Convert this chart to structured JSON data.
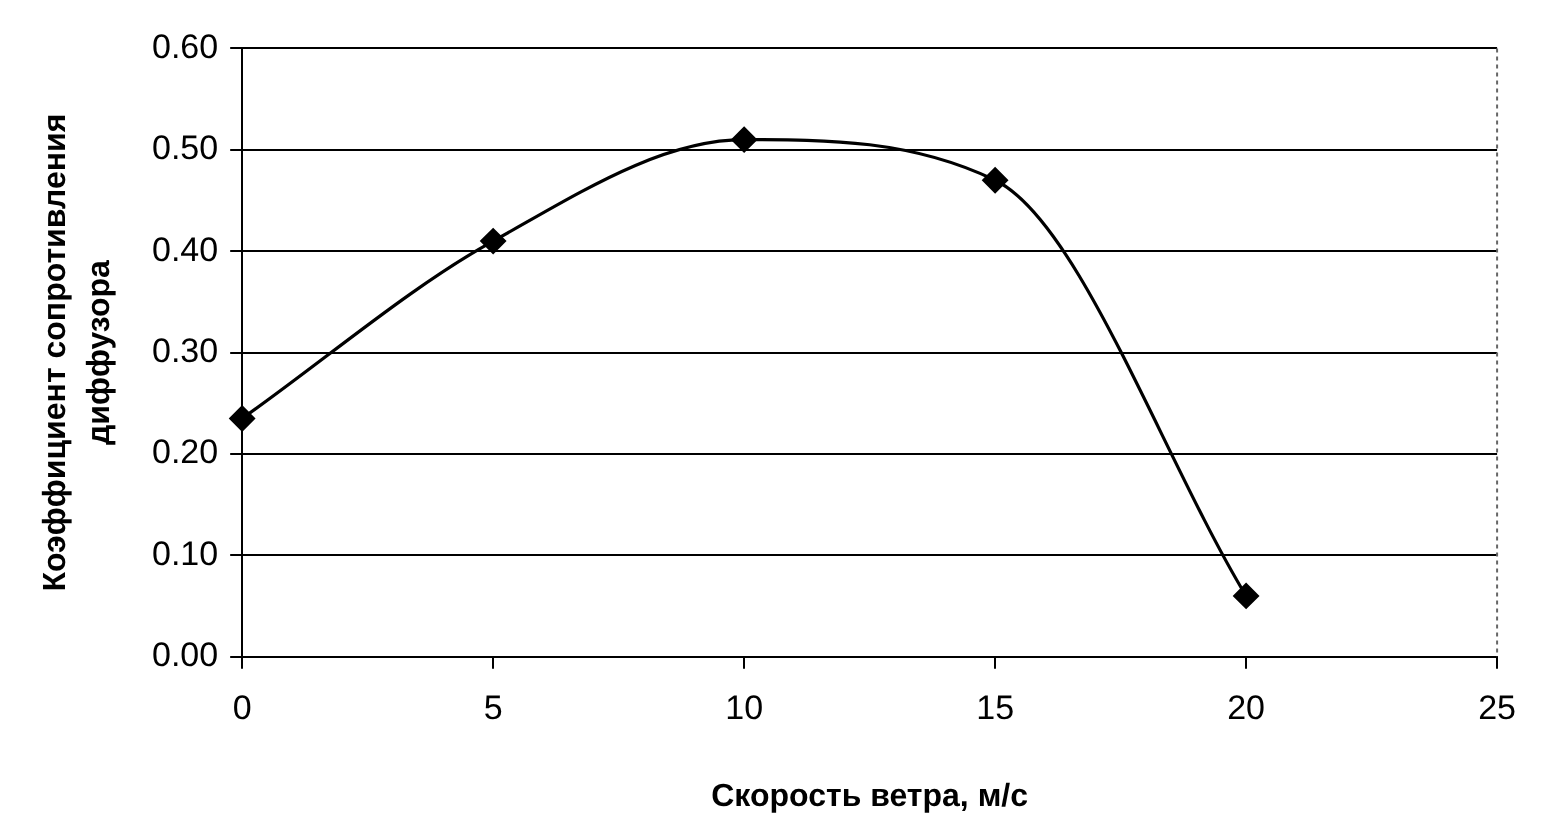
{
  "chart_data": {
    "type": "line",
    "xlabel": "Скорость ветра, м/с",
    "ylabel": "Коэффициент сопротивления диффузора",
    "x": [
      0,
      5,
      10,
      15,
      20
    ],
    "series": [
      {
        "color": "#000000",
        "values": [
          0.235,
          0.41,
          0.51,
          0.47,
          0.06
        ]
      }
    ],
    "xlim": [
      0,
      25
    ],
    "xticks": [
      0,
      5,
      10,
      15,
      20,
      25
    ],
    "ylim": [
      0,
      0.6
    ],
    "yticks": [
      {
        "value": 0,
        "label": "0.00"
      },
      {
        "value": 0.1,
        "label": "0.10"
      },
      {
        "value": 0.2,
        "label": "0.20"
      },
      {
        "value": 0.3,
        "label": "0.30"
      },
      {
        "value": 0.4,
        "label": "0.40"
      },
      {
        "value": 0.5,
        "label": "0.50"
      },
      {
        "value": 0.6,
        "label": "0.60"
      }
    ],
    "grid": "y",
    "marker": "diamond",
    "line_style": "solid",
    "legend": false
  }
}
